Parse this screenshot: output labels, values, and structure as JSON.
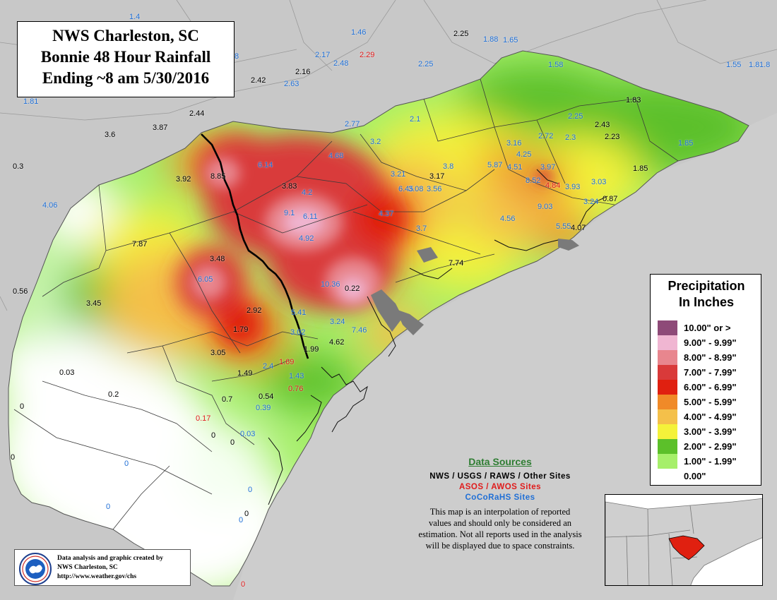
{
  "title": {
    "line1": "NWS Charleston, SC",
    "line2": "Bonnie 48 Hour Rainfall",
    "line3": "Ending ~8 am 5/30/2016"
  },
  "legend": {
    "title_line1": "Precipitation",
    "title_line2": "In Inches",
    "items": [
      {
        "label": "10.00\" or >",
        "color": "#8e4a78"
      },
      {
        "label": "9.00\" - 9.99\"",
        "color": "#f0b6d2"
      },
      {
        "label": "8.00\" - 8.99\"",
        "color": "#e8868e"
      },
      {
        "label": "7.00\" - 7.99\"",
        "color": "#d93a3a"
      },
      {
        "label": "6.00\" - 6.99\"",
        "color": "#e02010"
      },
      {
        "label": "5.00\" - 5.99\"",
        "color": "#f08a28"
      },
      {
        "label": "4.00\" - 4.99\"",
        "color": "#f4c04a"
      },
      {
        "label": "3.00\" - 3.99\"",
        "color": "#f4f23a"
      },
      {
        "label": "2.00\" - 2.99\"",
        "color": "#5cc02a"
      },
      {
        "label": "1.00\" - 1.99\"",
        "color": "#a6ef6a"
      },
      {
        "label": "0.00\"",
        "color": "#ffffff"
      }
    ]
  },
  "sources": {
    "title": "Data Sources",
    "nws": "NWS / USGS / RAWS / Other Sites",
    "asos": "ASOS / AWOS Sites",
    "cocorahs": "CoCoRaHS Sites",
    "disclaimer_lines": [
      "This map is an interpolation of reported",
      "values and should only be considered an",
      "estimation. Not all reports used in the analysis",
      "will be displayed due to space constraints."
    ]
  },
  "credit": {
    "line1": "Data analysis and graphic created by",
    "line2": "NWS Charleston, SC",
    "line3": "http://www.weather.gov/chs",
    "logo_text": "NATIONAL WEATHER SERVICE"
  },
  "colors": {
    "nws": "#000000",
    "asos": "#e01b1b",
    "cocorahs": "#1f6fd6",
    "background": "#c8c8c8",
    "water": "#8a8a8a"
  },
  "stations": [
    {
      "v": "1.4",
      "t": "cocorahs"
    },
    {
      "v": "1.46",
      "t": "cocorahs"
    },
    {
      "v": "2.25",
      "t": "nws"
    },
    {
      "v": "1.88",
      "t": "cocorahs"
    },
    {
      "v": "1.65",
      "t": "cocorahs"
    },
    {
      "v": "1.8",
      "t": "cocorahs"
    },
    {
      "v": "2.29",
      "t": "asos"
    },
    {
      "v": "2.17",
      "t": "cocorahs"
    },
    {
      "v": "2.48",
      "t": "cocorahs"
    },
    {
      "v": "2.25",
      "t": "cocorahs"
    },
    {
      "v": "1.58",
      "t": "cocorahs"
    },
    {
      "v": "1.55",
      "t": "cocorahs"
    },
    {
      "v": "1.8",
      "t": "cocorahs"
    },
    {
      "v": "8",
      "t": "cocorahs"
    },
    {
      "v": "2.42",
      "t": "nws"
    },
    {
      "v": "2.16",
      "t": "nws"
    },
    {
      "v": "2.63",
      "t": "cocorahs"
    },
    {
      "v": "1.81",
      "t": "cocorahs"
    },
    {
      "v": "2.44",
      "t": "nws"
    },
    {
      "v": "3.6",
      "t": "nws"
    },
    {
      "v": "3.87",
      "t": "nws"
    },
    {
      "v": "2.77",
      "t": "cocorahs"
    },
    {
      "v": "2.1",
      "t": "cocorahs"
    },
    {
      "v": "3.2",
      "t": "cocorahs"
    },
    {
      "v": "1.83",
      "t": "nws"
    },
    {
      "v": "2.25",
      "t": "cocorahs"
    },
    {
      "v": "2.43",
      "t": "nws"
    },
    {
      "v": "2.72",
      "t": "cocorahs"
    },
    {
      "v": "2.3",
      "t": "cocorahs"
    },
    {
      "v": "2.23",
      "t": "nws"
    },
    {
      "v": "1.85",
      "t": "cocorahs"
    },
    {
      "v": "1.85",
      "t": "nws"
    },
    {
      "v": "3.16",
      "t": "cocorahs"
    },
    {
      "v": "4.25",
      "t": "cocorahs"
    },
    {
      "v": "0.3",
      "t": "nws"
    },
    {
      "v": "6.14",
      "t": "cocorahs"
    },
    {
      "v": "4.68",
      "t": "cocorahs"
    },
    {
      "v": "5.87",
      "t": "cocorahs"
    },
    {
      "v": "4.51",
      "t": "cocorahs"
    },
    {
      "v": "3.97",
      "t": "cocorahs"
    },
    {
      "v": "3.92",
      "t": "nws"
    },
    {
      "v": "8.85",
      "t": "nws"
    },
    {
      "v": "3.21",
      "t": "cocorahs"
    },
    {
      "v": "3.17",
      "t": "nws"
    },
    {
      "v": "3.8",
      "t": "cocorahs"
    },
    {
      "v": "8.52",
      "t": "cocorahs"
    },
    {
      "v": "4.84",
      "t": "asos"
    },
    {
      "v": "3.93",
      "t": "cocorahs"
    },
    {
      "v": "3.03",
      "t": "cocorahs"
    },
    {
      "v": "6.45",
      "t": "cocorahs"
    },
    {
      "v": "4.2",
      "t": "cocorahs"
    },
    {
      "v": "3.83",
      "t": "nws"
    },
    {
      "v": "3.08",
      "t": "cocorahs"
    },
    {
      "v": "3.56",
      "t": "cocorahs"
    },
    {
      "v": "3.24",
      "t": "cocorahs"
    },
    {
      "v": "0.87",
      "t": "nws"
    },
    {
      "v": "4.06",
      "t": "cocorahs"
    },
    {
      "v": "9.03",
      "t": "cocorahs"
    },
    {
      "v": "9.1",
      "t": "cocorahs"
    },
    {
      "v": "6.11",
      "t": "cocorahs"
    },
    {
      "v": "4.37",
      "t": "cocorahs"
    },
    {
      "v": "4.56",
      "t": "cocorahs"
    },
    {
      "v": "3.7",
      "t": "cocorahs"
    },
    {
      "v": "5.55",
      "t": "cocorahs"
    },
    {
      "v": "4.07",
      "t": "nws"
    },
    {
      "v": "7.87",
      "t": "nws"
    },
    {
      "v": "4.92",
      "t": "cocorahs"
    },
    {
      "v": "3.48",
      "t": "nws"
    },
    {
      "v": "7.74",
      "t": "nws"
    },
    {
      "v": "6.05",
      "t": "cocorahs"
    },
    {
      "v": "10.36",
      "t": "cocorahs"
    },
    {
      "v": "0.22",
      "t": "nws"
    },
    {
      "v": "0.56",
      "t": "nws"
    },
    {
      "v": "3.45",
      "t": "nws"
    },
    {
      "v": "2.92",
      "t": "nws"
    },
    {
      "v": "5.41",
      "t": "cocorahs"
    },
    {
      "v": "3.24",
      "t": "cocorahs"
    },
    {
      "v": "7.46",
      "t": "cocorahs"
    },
    {
      "v": "1.79",
      "t": "nws"
    },
    {
      "v": "3.02",
      "t": "cocorahs"
    },
    {
      "v": "4.62",
      "t": "nws"
    },
    {
      "v": "1.99",
      "t": "nws"
    },
    {
      "v": "3.05",
      "t": "nws"
    },
    {
      "v": "1.69",
      "t": "asos"
    },
    {
      "v": "2.4",
      "t": "cocorahs"
    },
    {
      "v": "0.03",
      "t": "nws"
    },
    {
      "v": "1.49",
      "t": "nws"
    },
    {
      "v": "1.43",
      "t": "cocorahs"
    },
    {
      "v": "0.76",
      "t": "asos"
    },
    {
      "v": "0.2",
      "t": "nws"
    },
    {
      "v": "0.7",
      "t": "nws"
    },
    {
      "v": "0.54",
      "t": "nws"
    },
    {
      "v": "0.39",
      "t": "cocorahs"
    },
    {
      "v": "0",
      "t": "nws"
    },
    {
      "v": "0.17",
      "t": "asos"
    },
    {
      "v": "0",
      "t": "nws"
    },
    {
      "v": "0.03",
      "t": "cocorahs"
    },
    {
      "v": "0",
      "t": "nws"
    },
    {
      "v": "0",
      "t": "nws"
    },
    {
      "v": "0",
      "t": "cocorahs"
    },
    {
      "v": "0",
      "t": "cocorahs"
    },
    {
      "v": "0",
      "t": "cocorahs"
    },
    {
      "v": "0",
      "t": "nws"
    },
    {
      "v": "0",
      "t": "cocorahs"
    },
    {
      "v": "0",
      "t": "asos"
    }
  ]
}
